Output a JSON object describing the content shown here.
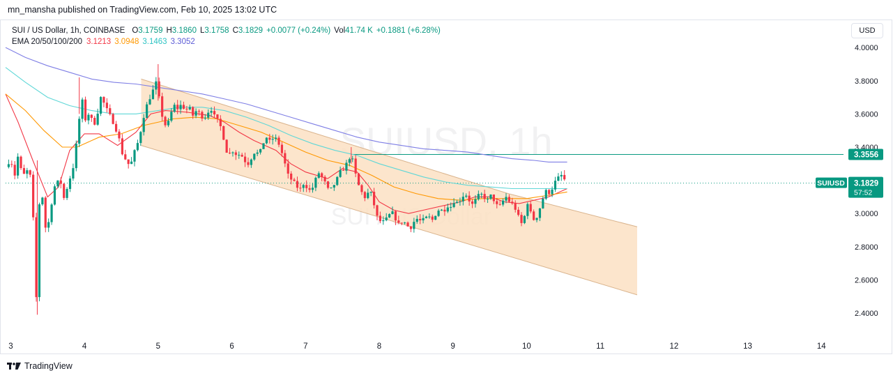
{
  "publisher": "mn_mansha published on TradingView.com, Feb 10, 2025 13:02 UTC",
  "footer_brand": "TradingView",
  "currency_button": "USD",
  "legend": {
    "symbol": "SUI / US Dollar, 1h, COINBASE",
    "o_label": "O",
    "o": "3.1759",
    "h_label": "H",
    "h": "3.1860",
    "l_label": "L",
    "l": "3.1758",
    "c_label": "C",
    "c": "3.1829",
    "change": "+0.0077 (+0.24%)",
    "vol_label": "Vol",
    "vol": "41.74 K",
    "vol_change": "+0.1881 (+6.28%)",
    "ema_label": "EMA 20/50/100/200",
    "ema20": "3.1213",
    "ema50": "3.0948",
    "ema100": "3.1463",
    "ema200": "3.3052"
  },
  "chart_data": {
    "type": "candlestick",
    "symbol": "SUIUSD",
    "interval": "1h",
    "exchange": "COINBASE",
    "watermark": "SUIUSD, 1h",
    "watermark_sub": "SUI / US Dollar",
    "x_ticks": [
      3,
      4,
      5,
      6,
      7,
      8,
      9,
      10,
      11,
      12,
      13,
      14
    ],
    "x_range": [
      2.93,
      14.3
    ],
    "y_ticks": [
      2.4,
      2.6,
      2.8,
      3.0,
      3.2,
      3.4,
      3.6,
      3.8,
      4.0
    ],
    "y_tick_labels": [
      "2.4000",
      "2.6000",
      "2.8000",
      "3.0000",
      "3.2000",
      "3.4000",
      "3.6000",
      "3.8000",
      "4.0000"
    ],
    "y_range": [
      2.27,
      4.135
    ],
    "axis_side": "right",
    "price_labels": [
      {
        "label": "3.3556",
        "value": 3.3556,
        "color": "#089981"
      },
      {
        "label": "3.1829",
        "value": 3.1829,
        "color": "#089981",
        "tag": "SUIUSD",
        "countdown": "57:52"
      }
    ],
    "channel": {
      "color": "#fbe0c3",
      "upper": [
        [
          4.77,
          3.81
        ],
        [
          9.75,
          3.12
        ],
        [
          11.5,
          2.92
        ]
      ],
      "lower": [
        [
          4.77,
          3.41
        ],
        [
          11.5,
          2.51
        ]
      ]
    },
    "horizontal_line": {
      "from_x": 7.62,
      "to_x": 14.3,
      "value": 3.3556,
      "color": "#089981"
    },
    "close_line": {
      "value": 3.1829,
      "color": "#089981",
      "style": "dotted"
    },
    "emas": [
      {
        "name": "EMA 20",
        "color": "#f23645",
        "points": [
          [
            2.93,
            3.72
          ],
          [
            3.1,
            3.55
          ],
          [
            3.3,
            3.32
          ],
          [
            3.5,
            3.1
          ],
          [
            3.65,
            3.16
          ],
          [
            3.8,
            3.38
          ],
          [
            4.0,
            3.48
          ],
          [
            4.2,
            3.48
          ],
          [
            4.45,
            3.41
          ],
          [
            4.7,
            3.49
          ],
          [
            4.9,
            3.6
          ],
          [
            5.1,
            3.62
          ],
          [
            5.4,
            3.61
          ],
          [
            5.7,
            3.59
          ],
          [
            5.9,
            3.55
          ],
          [
            6.1,
            3.49
          ],
          [
            6.3,
            3.44
          ],
          [
            6.6,
            3.38
          ],
          [
            6.8,
            3.3
          ],
          [
            7.0,
            3.25
          ],
          [
            7.3,
            3.21
          ],
          [
            7.5,
            3.27
          ],
          [
            7.7,
            3.25
          ],
          [
            7.85,
            3.17
          ],
          [
            8.0,
            3.07
          ],
          [
            8.2,
            3.02
          ],
          [
            8.4,
            3.0
          ],
          [
            8.6,
            3.02
          ],
          [
            8.9,
            3.05
          ],
          [
            9.1,
            3.07
          ],
          [
            9.3,
            3.1
          ],
          [
            9.5,
            3.1
          ],
          [
            9.7,
            3.07
          ],
          [
            9.9,
            3.06
          ],
          [
            10.1,
            3.08
          ],
          [
            10.3,
            3.1
          ],
          [
            10.5,
            3.14
          ],
          [
            10.55,
            3.15
          ]
        ]
      },
      {
        "name": "EMA 50",
        "color": "#ff9800",
        "points": [
          [
            2.93,
            3.72
          ],
          [
            3.2,
            3.62
          ],
          [
            3.45,
            3.5
          ],
          [
            3.7,
            3.4
          ],
          [
            3.9,
            3.4
          ],
          [
            4.2,
            3.46
          ],
          [
            4.5,
            3.48
          ],
          [
            4.8,
            3.53
          ],
          [
            5.2,
            3.57
          ],
          [
            5.5,
            3.58
          ],
          [
            5.8,
            3.57
          ],
          [
            6.1,
            3.53
          ],
          [
            6.4,
            3.49
          ],
          [
            6.7,
            3.43
          ],
          [
            7.0,
            3.37
          ],
          [
            7.3,
            3.32
          ],
          [
            7.6,
            3.29
          ],
          [
            7.9,
            3.23
          ],
          [
            8.2,
            3.16
          ],
          [
            8.5,
            3.12
          ],
          [
            8.8,
            3.09
          ],
          [
            9.1,
            3.08
          ],
          [
            9.4,
            3.09
          ],
          [
            9.7,
            3.09
          ],
          [
            10.0,
            3.09
          ],
          [
            10.3,
            3.11
          ],
          [
            10.55,
            3.13
          ]
        ]
      },
      {
        "name": "EMA 100",
        "color": "#5fd7d7",
        "points": [
          [
            2.93,
            3.88
          ],
          [
            3.2,
            3.79
          ],
          [
            3.5,
            3.7
          ],
          [
            3.8,
            3.65
          ],
          [
            4.1,
            3.62
          ],
          [
            4.4,
            3.6
          ],
          [
            4.7,
            3.6
          ],
          [
            5.0,
            3.62
          ],
          [
            5.3,
            3.64
          ],
          [
            5.6,
            3.64
          ],
          [
            5.9,
            3.62
          ],
          [
            6.2,
            3.58
          ],
          [
            6.5,
            3.53
          ],
          [
            6.8,
            3.47
          ],
          [
            7.1,
            3.42
          ],
          [
            7.4,
            3.38
          ],
          [
            7.7,
            3.35
          ],
          [
            8.0,
            3.3
          ],
          [
            8.3,
            3.26
          ],
          [
            8.6,
            3.22
          ],
          [
            8.9,
            3.19
          ],
          [
            9.2,
            3.17
          ],
          [
            9.5,
            3.16
          ],
          [
            9.8,
            3.15
          ],
          [
            10.1,
            3.15
          ],
          [
            10.55,
            3.15
          ]
        ]
      },
      {
        "name": "EMA 200",
        "color": "#7e7ee5",
        "points": [
          [
            2.93,
            4.0
          ],
          [
            3.2,
            3.94
          ],
          [
            3.5,
            3.89
          ],
          [
            3.8,
            3.85
          ],
          [
            4.1,
            3.81
          ],
          [
            4.4,
            3.79
          ],
          [
            4.7,
            3.78
          ],
          [
            5.0,
            3.76
          ],
          [
            5.3,
            3.74
          ],
          [
            5.6,
            3.72
          ],
          [
            5.9,
            3.69
          ],
          [
            6.2,
            3.66
          ],
          [
            6.5,
            3.62
          ],
          [
            6.8,
            3.58
          ],
          [
            7.1,
            3.54
          ],
          [
            7.4,
            3.5
          ],
          [
            7.7,
            3.46
          ],
          [
            8.0,
            3.43
          ],
          [
            8.3,
            3.41
          ],
          [
            8.6,
            3.39
          ],
          [
            8.9,
            3.38
          ],
          [
            9.2,
            3.37
          ],
          [
            9.5,
            3.35
          ],
          [
            9.8,
            3.33
          ],
          [
            10.1,
            3.32
          ],
          [
            10.3,
            3.31
          ],
          [
            10.55,
            3.31
          ]
        ]
      }
    ],
    "candle_up_color": "#089981",
    "candle_down_color": "#f23645",
    "price_path": [
      [
        2.93,
        3.28
      ],
      [
        3.0,
        3.33
      ],
      [
        3.05,
        3.22
      ],
      [
        3.1,
        3.35
      ],
      [
        3.15,
        3.24
      ],
      [
        3.2,
        3.23
      ],
      [
        3.25,
        3.29
      ],
      [
        3.3,
        3.05
      ],
      [
        3.33,
        2.55
      ],
      [
        3.36,
        2.45
      ],
      [
        3.38,
        3.05
      ],
      [
        3.43,
        3.1
      ],
      [
        3.48,
        2.88
      ],
      [
        3.53,
        2.98
      ],
      [
        3.58,
        3.15
      ],
      [
        3.63,
        3.19
      ],
      [
        3.7,
        3.18
      ],
      [
        3.73,
        3.06
      ],
      [
        3.78,
        3.2
      ],
      [
        3.83,
        3.23
      ],
      [
        3.88,
        3.38
      ],
      [
        3.93,
        3.57
      ],
      [
        3.97,
        3.68
      ],
      [
        4.02,
        3.55
      ],
      [
        4.07,
        3.62
      ],
      [
        4.12,
        3.52
      ],
      [
        4.17,
        3.59
      ],
      [
        4.22,
        3.7
      ],
      [
        4.27,
        3.66
      ],
      [
        4.32,
        3.61
      ],
      [
        4.37,
        3.57
      ],
      [
        4.42,
        3.52
      ],
      [
        4.47,
        3.45
      ],
      [
        4.52,
        3.35
      ],
      [
        4.57,
        3.32
      ],
      [
        4.62,
        3.28
      ],
      [
        4.67,
        3.36
      ],
      [
        4.72,
        3.42
      ],
      [
        4.77,
        3.51
      ],
      [
        4.82,
        3.62
      ],
      [
        4.87,
        3.68
      ],
      [
        4.92,
        3.73
      ],
      [
        4.97,
        3.79
      ],
      [
        5.02,
        3.68
      ],
      [
        5.07,
        3.55
      ],
      [
        5.12,
        3.52
      ],
      [
        5.17,
        3.6
      ],
      [
        5.22,
        3.65
      ],
      [
        5.27,
        3.63
      ],
      [
        5.32,
        3.66
      ],
      [
        5.37,
        3.62
      ],
      [
        5.42,
        3.64
      ],
      [
        5.47,
        3.59
      ],
      [
        5.52,
        3.62
      ],
      [
        5.57,
        3.6
      ],
      [
        5.62,
        3.57
      ],
      [
        5.67,
        3.61
      ],
      [
        5.72,
        3.63
      ],
      [
        5.77,
        3.58
      ],
      [
        5.82,
        3.55
      ],
      [
        5.87,
        3.5
      ],
      [
        5.92,
        3.38
      ],
      [
        5.97,
        3.36
      ],
      [
        6.02,
        3.38
      ],
      [
        6.07,
        3.35
      ],
      [
        6.12,
        3.36
      ],
      [
        6.17,
        3.32
      ],
      [
        6.22,
        3.3
      ],
      [
        6.27,
        3.34
      ],
      [
        6.32,
        3.38
      ],
      [
        6.37,
        3.35
      ],
      [
        6.42,
        3.42
      ],
      [
        6.47,
        3.46
      ],
      [
        6.52,
        3.43
      ],
      [
        6.57,
        3.46
      ],
      [
        6.62,
        3.44
      ],
      [
        6.67,
        3.38
      ],
      [
        6.72,
        3.3
      ],
      [
        6.77,
        3.22
      ],
      [
        6.82,
        3.2
      ],
      [
        6.87,
        3.17
      ],
      [
        6.92,
        3.14
      ],
      [
        6.97,
        3.18
      ],
      [
        7.02,
        3.16
      ],
      [
        7.07,
        3.13
      ],
      [
        7.12,
        3.18
      ],
      [
        7.17,
        3.25
      ],
      [
        7.22,
        3.22
      ],
      [
        7.27,
        3.18
      ],
      [
        7.32,
        3.13
      ],
      [
        7.37,
        3.16
      ],
      [
        7.42,
        3.2
      ],
      [
        7.47,
        3.25
      ],
      [
        7.52,
        3.27
      ],
      [
        7.57,
        3.31
      ],
      [
        7.62,
        3.36
      ],
      [
        7.67,
        3.25
      ],
      [
        7.72,
        3.17
      ],
      [
        7.77,
        3.12
      ],
      [
        7.82,
        3.09
      ],
      [
        7.87,
        3.15
      ],
      [
        7.92,
        3.07
      ],
      [
        7.97,
        2.98
      ],
      [
        8.02,
        2.95
      ],
      [
        8.07,
        2.95
      ],
      [
        8.12,
        2.98
      ],
      [
        8.17,
        3.01
      ],
      [
        8.22,
        2.97
      ],
      [
        8.27,
        2.93
      ],
      [
        8.32,
        2.96
      ],
      [
        8.37,
        2.93
      ],
      [
        8.42,
        2.91
      ],
      [
        8.47,
        2.95
      ],
      [
        8.52,
        2.97
      ],
      [
        8.57,
        2.95
      ],
      [
        8.62,
        2.97
      ],
      [
        8.67,
        2.98
      ],
      [
        8.72,
        2.96
      ],
      [
        8.77,
        3.0
      ],
      [
        8.82,
        3.03
      ],
      [
        8.87,
        3.01
      ],
      [
        8.92,
        3.05
      ],
      [
        8.97,
        3.04
      ],
      [
        9.02,
        3.08
      ],
      [
        9.07,
        3.06
      ],
      [
        9.12,
        3.1
      ],
      [
        9.17,
        3.12
      ],
      [
        9.22,
        3.08
      ],
      [
        9.27,
        3.05
      ],
      [
        9.32,
        3.09
      ],
      [
        9.37,
        3.12
      ],
      [
        9.42,
        3.1
      ],
      [
        9.47,
        3.08
      ],
      [
        9.52,
        3.11
      ],
      [
        9.57,
        3.07
      ],
      [
        9.62,
        3.03
      ],
      [
        9.67,
        3.07
      ],
      [
        9.72,
        3.1
      ],
      [
        9.77,
        3.07
      ],
      [
        9.82,
        3.05
      ],
      [
        9.87,
        3.01
      ],
      [
        9.92,
        2.93
      ],
      [
        9.97,
        2.98
      ],
      [
        10.02,
        3.08
      ],
      [
        10.07,
        2.97
      ],
      [
        10.12,
        2.96
      ],
      [
        10.17,
        3.02
      ],
      [
        10.22,
        3.09
      ],
      [
        10.27,
        3.14
      ],
      [
        10.32,
        3.12
      ],
      [
        10.37,
        3.18
      ],
      [
        10.42,
        3.21
      ],
      [
        10.47,
        3.23
      ],
      [
        10.52,
        3.2
      ],
      [
        10.55,
        3.1829
      ]
    ]
  }
}
